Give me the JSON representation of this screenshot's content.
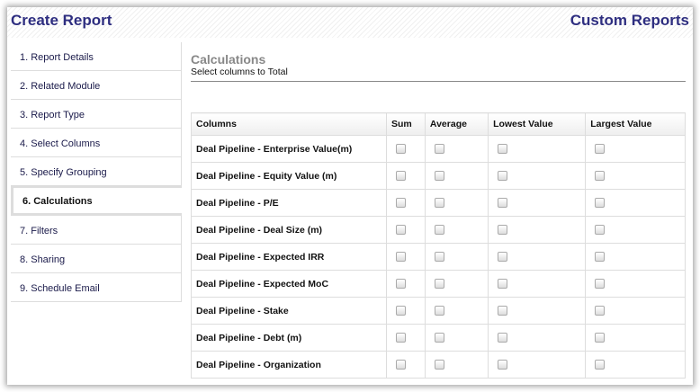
{
  "header": {
    "title": "Create Report",
    "right_title": "Custom Reports"
  },
  "sidebar": {
    "items": [
      "1. Report Details",
      "2. Related Module",
      "3. Report Type",
      "4. Select Columns",
      "5. Specify Grouping",
      "6. Calculations",
      "7. Filters",
      "8. Sharing",
      "9. Schedule Email"
    ],
    "active": 5
  },
  "main": {
    "title": "Calculations",
    "subtitle": "Select columns to Total"
  },
  "table": {
    "headers": [
      "Columns",
      "Sum",
      "Average",
      "Lowest Value",
      "Largest Value"
    ],
    "rows": [
      "Deal Pipeline - Enterprise Value(m)",
      "Deal Pipeline - Equity Value (m)",
      "Deal Pipeline - P/E",
      "Deal Pipeline - Deal Size (m)",
      "Deal Pipeline - Expected IRR",
      "Deal Pipeline - Expected MoC",
      "Deal Pipeline - Stake",
      "Deal Pipeline - Debt (m)",
      "Deal Pipeline - Organization"
    ],
    "checked": false
  }
}
